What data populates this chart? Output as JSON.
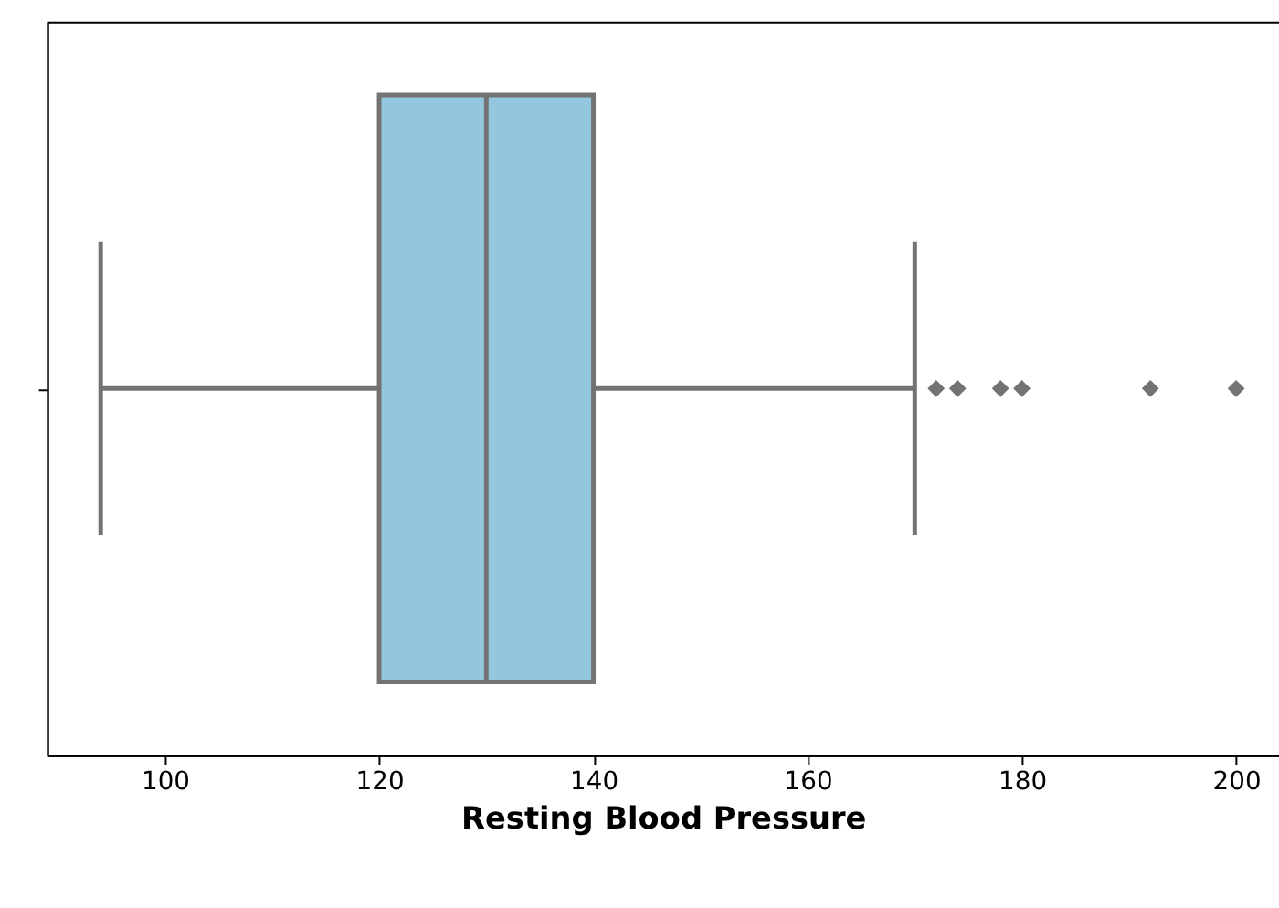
{
  "chart_data": {
    "type": "box",
    "orientation": "horizontal",
    "categories": [
      null
    ],
    "color": "#93c7de",
    "boxes": [
      {
        "low": 94,
        "q1": 120,
        "median": 130,
        "q3": 140,
        "high": 170,
        "outliers": [
          172,
          174,
          178,
          180,
          192,
          200
        ]
      }
    ],
    "xlabel": "Resting Blood Pressure",
    "xlim": [
      89,
      204
    ],
    "xticks": [
      100,
      120,
      140,
      160,
      180,
      200
    ],
    "grid": false,
    "tick_labels": "x",
    "marker": "diamond"
  }
}
